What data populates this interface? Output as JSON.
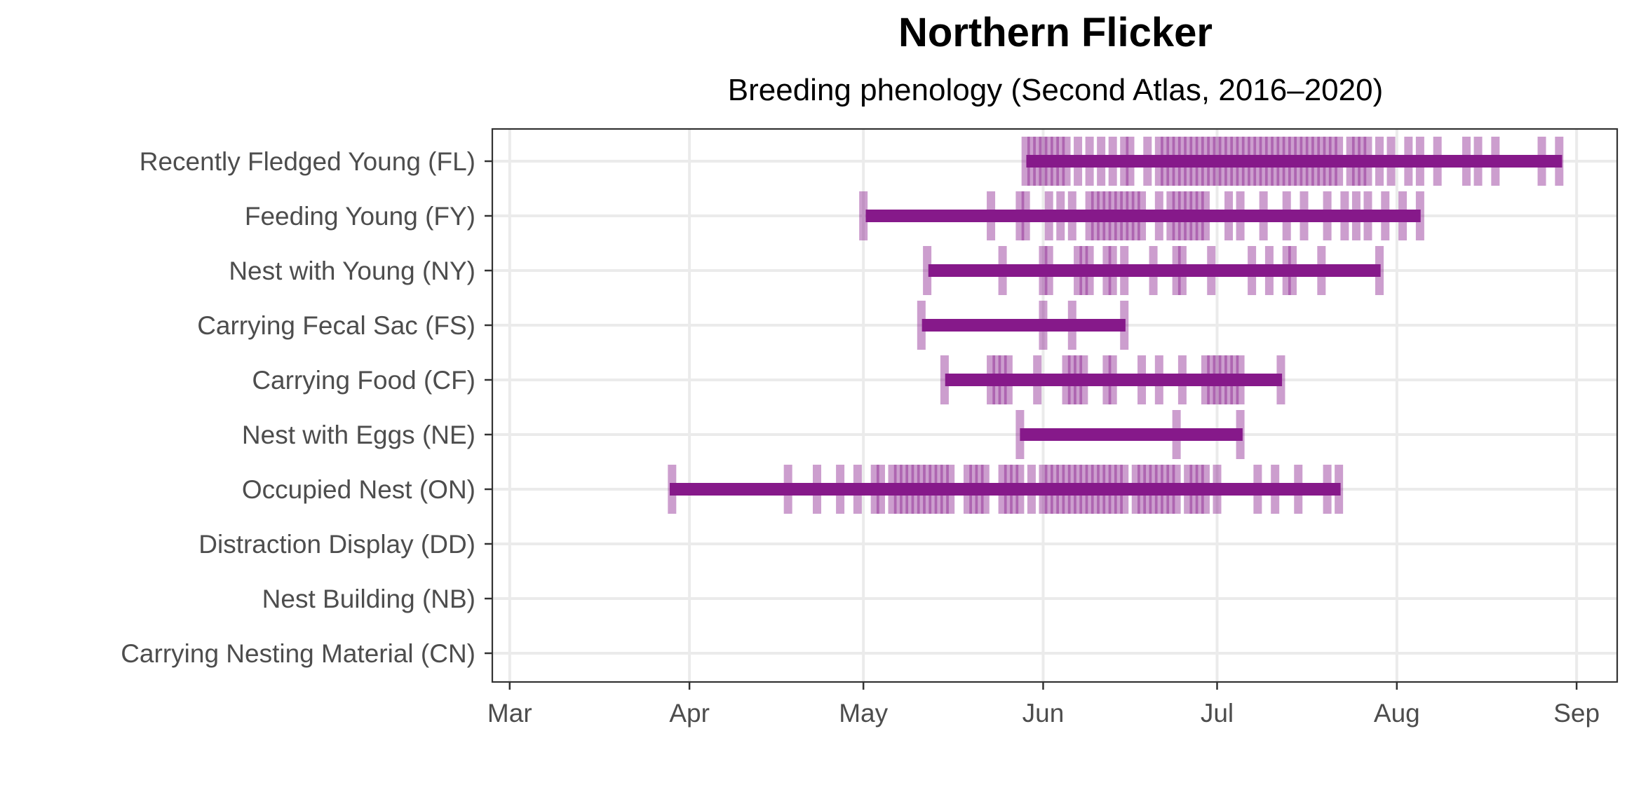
{
  "chart_data": {
    "type": "phenology",
    "title": "Northern Flicker",
    "subtitle": "Breeding phenology (Second Atlas, 2016–2020)",
    "xlabel": "",
    "ylabel": "",
    "x_unit": "day of year",
    "xlim": [
      57,
      251
    ],
    "x_ticks": [
      {
        "label": "Mar",
        "day": 60
      },
      {
        "label": "Apr",
        "day": 91
      },
      {
        "label": "May",
        "day": 121
      },
      {
        "label": "Jun",
        "day": 152
      },
      {
        "label": "Jul",
        "day": 182
      },
      {
        "label": "Aug",
        "day": 213
      },
      {
        "label": "Sep",
        "day": 244
      }
    ],
    "colors": {
      "bar": "#86198a",
      "tick": "#86198a",
      "grid": "#ebebeb",
      "axis": "#333333",
      "panel_border": "#333333"
    },
    "categories": [
      {
        "label": "Recently Fledged Young (FL)",
        "range": [
          149.1,
          241.5
        ],
        "records": [
          149,
          150,
          151,
          152,
          153,
          154,
          155,
          156,
          158,
          160,
          162,
          164,
          166,
          167,
          170,
          172,
          173,
          174,
          175,
          176,
          177,
          178,
          179,
          180,
          181,
          182,
          183,
          184,
          185,
          186,
          187,
          188,
          189,
          190,
          191,
          192,
          193,
          194,
          195,
          196,
          197,
          198,
          199,
          200,
          201,
          202,
          203,
          205,
          206,
          207,
          208,
          210,
          212,
          215,
          217,
          220,
          225,
          227,
          230,
          238,
          241
        ]
      },
      {
        "label": "Feeding Young (FY)",
        "range": [
          121.4,
          217.1
        ],
        "records": [
          121,
          143,
          148,
          149,
          153,
          155,
          157,
          160,
          161,
          162,
          163,
          164,
          165,
          166,
          167,
          168,
          169,
          172,
          174,
          175,
          176,
          177,
          178,
          179,
          180,
          184,
          186,
          190,
          194,
          197,
          201,
          204,
          206,
          208,
          211,
          214,
          217
        ]
      },
      {
        "label": "Nest with Young (NY)",
        "range": [
          132.2,
          210.2
        ],
        "records": [
          132,
          145,
          152,
          153,
          158,
          159,
          160,
          163,
          164,
          166,
          171,
          175,
          176,
          181,
          188,
          191,
          194,
          195,
          200,
          210
        ]
      },
      {
        "label": "Carrying Fecal Sac (FS)",
        "range": [
          131.1,
          166.2
        ],
        "records": [
          131,
          152,
          157,
          166
        ]
      },
      {
        "label": "Carrying Food (CF)",
        "range": [
          135.1,
          193.2
        ],
        "records": [
          135,
          143,
          144,
          145,
          146,
          151,
          156,
          157,
          158,
          159,
          163,
          164,
          169,
          172,
          176,
          180,
          181,
          182,
          183,
          184,
          185,
          186,
          193
        ]
      },
      {
        "label": "Nest with Eggs (NE)",
        "range": [
          148.0,
          186.4
        ],
        "records": [
          148,
          175,
          186
        ]
      },
      {
        "label": "Occupied Nest (ON)",
        "range": [
          87.6,
          203.3
        ],
        "records": [
          88,
          108,
          113,
          117,
          120,
          123,
          124,
          126,
          127,
          128,
          129,
          130,
          131,
          132,
          133,
          134,
          135,
          136,
          139,
          140,
          141,
          142,
          145,
          146,
          147,
          148,
          150,
          152,
          153,
          154,
          155,
          156,
          157,
          158,
          159,
          160,
          161,
          162,
          163,
          164,
          165,
          166,
          168,
          169,
          170,
          171,
          172,
          173,
          174,
          175,
          177,
          178,
          179,
          180,
          182,
          189,
          192,
          196,
          201,
          203
        ]
      },
      {
        "label": "Distraction Display (DD)",
        "range": null,
        "records": []
      },
      {
        "label": "Nest Building (NB)",
        "range": null,
        "records": []
      },
      {
        "label": "Carrying Nesting Material (CN)",
        "range": null,
        "records": []
      }
    ]
  }
}
